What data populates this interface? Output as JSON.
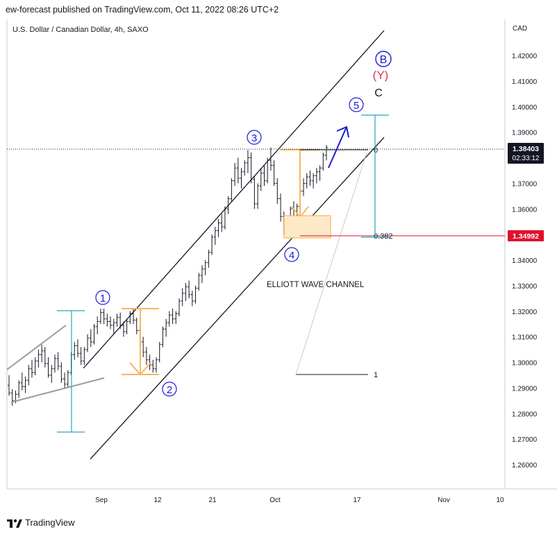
{
  "header": {
    "published_text": "ew-forecast published on TradingView.com, Oct 11, 2022 08:26 UTC+2"
  },
  "chart": {
    "symbol_title": "U.S. Dollar / Canadian Dollar, 4h, SAXO",
    "currency": "CAD"
  },
  "footer": {
    "brand": "TradingView"
  },
  "colors": {
    "candle": "#131722",
    "channel": "#131722",
    "wave_blue": "#1a1ad6",
    "y_red": "#e0344b",
    "orange": "#f7b55e",
    "orange_fill": "#fde9c7",
    "teal": "#2aa3b8",
    "red_line": "#e0112b",
    "gray_line": "#9a9a9a"
  },
  "chart_data": {
    "type": "candlestick",
    "ylim": [
      1.25,
      1.43
    ],
    "y_ticks": [
      "1.26000",
      "1.27000",
      "1.28000",
      "1.29000",
      "1.30000",
      "1.31000",
      "1.32000",
      "1.33000",
      "1.34000",
      "1.35000",
      "1.36000",
      "1.37000",
      "1.38000",
      "1.39000",
      "1.40000",
      "1.41000",
      "1.42000"
    ],
    "x_ticks": [
      "Sep",
      "12",
      "21",
      "Oct",
      "17",
      "Nov",
      "10"
    ],
    "last_price": "1.38403",
    "countdown": "02:33:12",
    "level_price": "1.34992",
    "fib_labels": [
      "0",
      "0.382",
      "1"
    ],
    "wave_labels": [
      "1",
      "2",
      "3",
      "4",
      "5"
    ],
    "degree_labels": [
      "B",
      "(Y)",
      "C"
    ],
    "annotation": "ELLIOTT WAVE CHANNEL",
    "series": [
      {
        "values": [
          [
            1.291,
            1.295,
            1.287,
            1.288
          ],
          [
            1.288,
            1.2895,
            1.283,
            1.285
          ],
          [
            1.285,
            1.289,
            1.284,
            1.2875
          ],
          [
            1.2875,
            1.293,
            1.286,
            1.292
          ],
          [
            1.292,
            1.296,
            1.289,
            1.2905
          ],
          [
            1.2905,
            1.2945,
            1.288,
            1.293
          ],
          [
            1.293,
            1.299,
            1.291,
            1.2975
          ],
          [
            1.2975,
            1.301,
            1.294,
            1.296
          ],
          [
            1.296,
            1.302,
            1.295,
            1.3005
          ],
          [
            1.3005,
            1.305,
            1.298,
            1.303
          ],
          [
            1.303,
            1.307,
            1.3,
            1.3045
          ],
          [
            1.3045,
            1.306,
            1.298,
            1.2995
          ],
          [
            1.2995,
            1.302,
            1.294,
            1.295
          ],
          [
            1.295,
            1.299,
            1.292,
            1.2975
          ],
          [
            1.2975,
            1.303,
            1.296,
            1.3015
          ],
          [
            1.3015,
            1.304,
            1.297,
            1.2985
          ],
          [
            1.2985,
            1.3,
            1.292,
            1.2935
          ],
          [
            1.2935,
            1.296,
            1.29,
            1.2915
          ],
          [
            1.2915,
            1.297,
            1.29,
            1.296
          ],
          [
            1.296,
            1.304,
            1.295,
            1.303
          ],
          [
            1.303,
            1.308,
            1.301,
            1.3065
          ],
          [
            1.3065,
            1.309,
            1.302,
            1.3035
          ],
          [
            1.3035,
            1.306,
            1.299,
            1.3005
          ],
          [
            1.3005,
            1.306,
            1.299,
            1.305
          ],
          [
            1.305,
            1.311,
            1.304,
            1.3095
          ],
          [
            1.3095,
            1.313,
            1.306,
            1.308
          ],
          [
            1.308,
            1.315,
            1.307,
            1.314
          ],
          [
            1.314,
            1.318,
            1.311,
            1.316
          ],
          [
            1.316,
            1.321,
            1.315,
            1.3195
          ],
          [
            1.3195,
            1.321,
            1.315,
            1.317
          ],
          [
            1.317,
            1.319,
            1.314,
            1.316
          ],
          [
            1.316,
            1.318,
            1.313,
            1.3145
          ],
          [
            1.3145,
            1.317,
            1.311,
            1.3155
          ],
          [
            1.3155,
            1.319,
            1.314,
            1.3175
          ],
          [
            1.3175,
            1.3195,
            1.313,
            1.3145
          ],
          [
            1.3145,
            1.316,
            1.31,
            1.312
          ],
          [
            1.312,
            1.317,
            1.311,
            1.316
          ],
          [
            1.316,
            1.32,
            1.315,
            1.319
          ],
          [
            1.319,
            1.321,
            1.315,
            1.3165
          ],
          [
            1.3165,
            1.3175,
            1.311,
            1.3125
          ],
          [
            1.3125,
            1.314,
            1.306,
            1.308
          ],
          [
            1.308,
            1.31,
            1.302,
            1.304
          ],
          [
            1.304,
            1.306,
            1.299,
            1.301
          ],
          [
            1.301,
            1.303,
            1.297,
            1.299
          ],
          [
            1.299,
            1.301,
            1.296,
            1.2975
          ],
          [
            1.2975,
            1.302,
            1.296,
            1.301
          ],
          [
            1.301,
            1.308,
            1.3,
            1.307
          ],
          [
            1.307,
            1.314,
            1.306,
            1.313
          ],
          [
            1.313,
            1.317,
            1.31,
            1.3155
          ],
          [
            1.3155,
            1.32,
            1.314,
            1.3185
          ],
          [
            1.3185,
            1.321,
            1.315,
            1.317
          ],
          [
            1.317,
            1.32,
            1.315,
            1.319
          ],
          [
            1.319,
            1.325,
            1.318,
            1.324
          ],
          [
            1.324,
            1.329,
            1.322,
            1.327
          ],
          [
            1.327,
            1.331,
            1.324,
            1.3295
          ],
          [
            1.3295,
            1.332,
            1.325,
            1.3265
          ],
          [
            1.3265,
            1.328,
            1.322,
            1.324
          ],
          [
            1.324,
            1.33,
            1.323,
            1.329
          ],
          [
            1.329,
            1.335,
            1.328,
            1.334
          ],
          [
            1.334,
            1.338,
            1.331,
            1.3365
          ],
          [
            1.3365,
            1.34,
            1.334,
            1.339
          ],
          [
            1.339,
            1.344,
            1.337,
            1.343
          ],
          [
            1.343,
            1.35,
            1.342,
            1.349
          ],
          [
            1.349,
            1.353,
            1.346,
            1.3515
          ],
          [
            1.3515,
            1.356,
            1.349,
            1.3545
          ],
          [
            1.3545,
            1.358,
            1.351,
            1.353
          ],
          [
            1.353,
            1.361,
            1.352,
            1.36
          ],
          [
            1.36,
            1.365,
            1.358,
            1.364
          ],
          [
            1.364,
            1.372,
            1.363,
            1.371
          ],
          [
            1.371,
            1.378,
            1.369,
            1.376
          ],
          [
            1.376,
            1.38,
            1.37,
            1.372
          ],
          [
            1.372,
            1.376,
            1.368,
            1.3745
          ],
          [
            1.3745,
            1.379,
            1.373,
            1.378
          ],
          [
            1.378,
            1.383,
            1.374,
            1.38
          ],
          [
            1.38,
            1.382,
            1.37,
            1.3715
          ],
          [
            1.3715,
            1.373,
            1.36,
            1.362
          ],
          [
            1.362,
            1.37,
            1.36,
            1.369
          ],
          [
            1.369,
            1.376,
            1.367,
            1.374
          ],
          [
            1.374,
            1.377,
            1.369,
            1.371
          ],
          [
            1.371,
            1.38,
            1.37,
            1.379
          ],
          [
            1.379,
            1.384,
            1.375,
            1.377
          ],
          [
            1.377,
            1.379,
            1.369,
            1.37
          ],
          [
            1.37,
            1.372,
            1.362,
            1.364
          ],
          [
            1.364,
            1.366,
            1.355,
            1.357
          ],
          [
            1.357,
            1.359,
            1.35,
            1.352
          ],
          [
            1.352,
            1.356,
            1.349,
            1.3545
          ],
          [
            1.3545,
            1.361,
            1.353,
            1.36
          ],
          [
            1.36,
            1.363,
            1.355,
            1.357
          ],
          [
            1.357,
            1.362,
            1.356,
            1.361
          ],
          [
            1.361,
            1.368,
            1.36,
            1.367
          ],
          [
            1.367,
            1.372,
            1.365,
            1.37
          ],
          [
            1.37,
            1.374,
            1.368,
            1.3725
          ],
          [
            1.3725,
            1.375,
            1.369,
            1.371
          ],
          [
            1.371,
            1.374,
            1.368,
            1.373
          ],
          [
            1.373,
            1.376,
            1.37,
            1.3745
          ],
          [
            1.3745,
            1.377,
            1.371,
            1.376
          ],
          [
            1.376,
            1.382,
            1.375,
            1.381
          ],
          [
            1.381,
            1.385,
            1.379,
            1.384
          ]
        ]
      }
    ]
  }
}
